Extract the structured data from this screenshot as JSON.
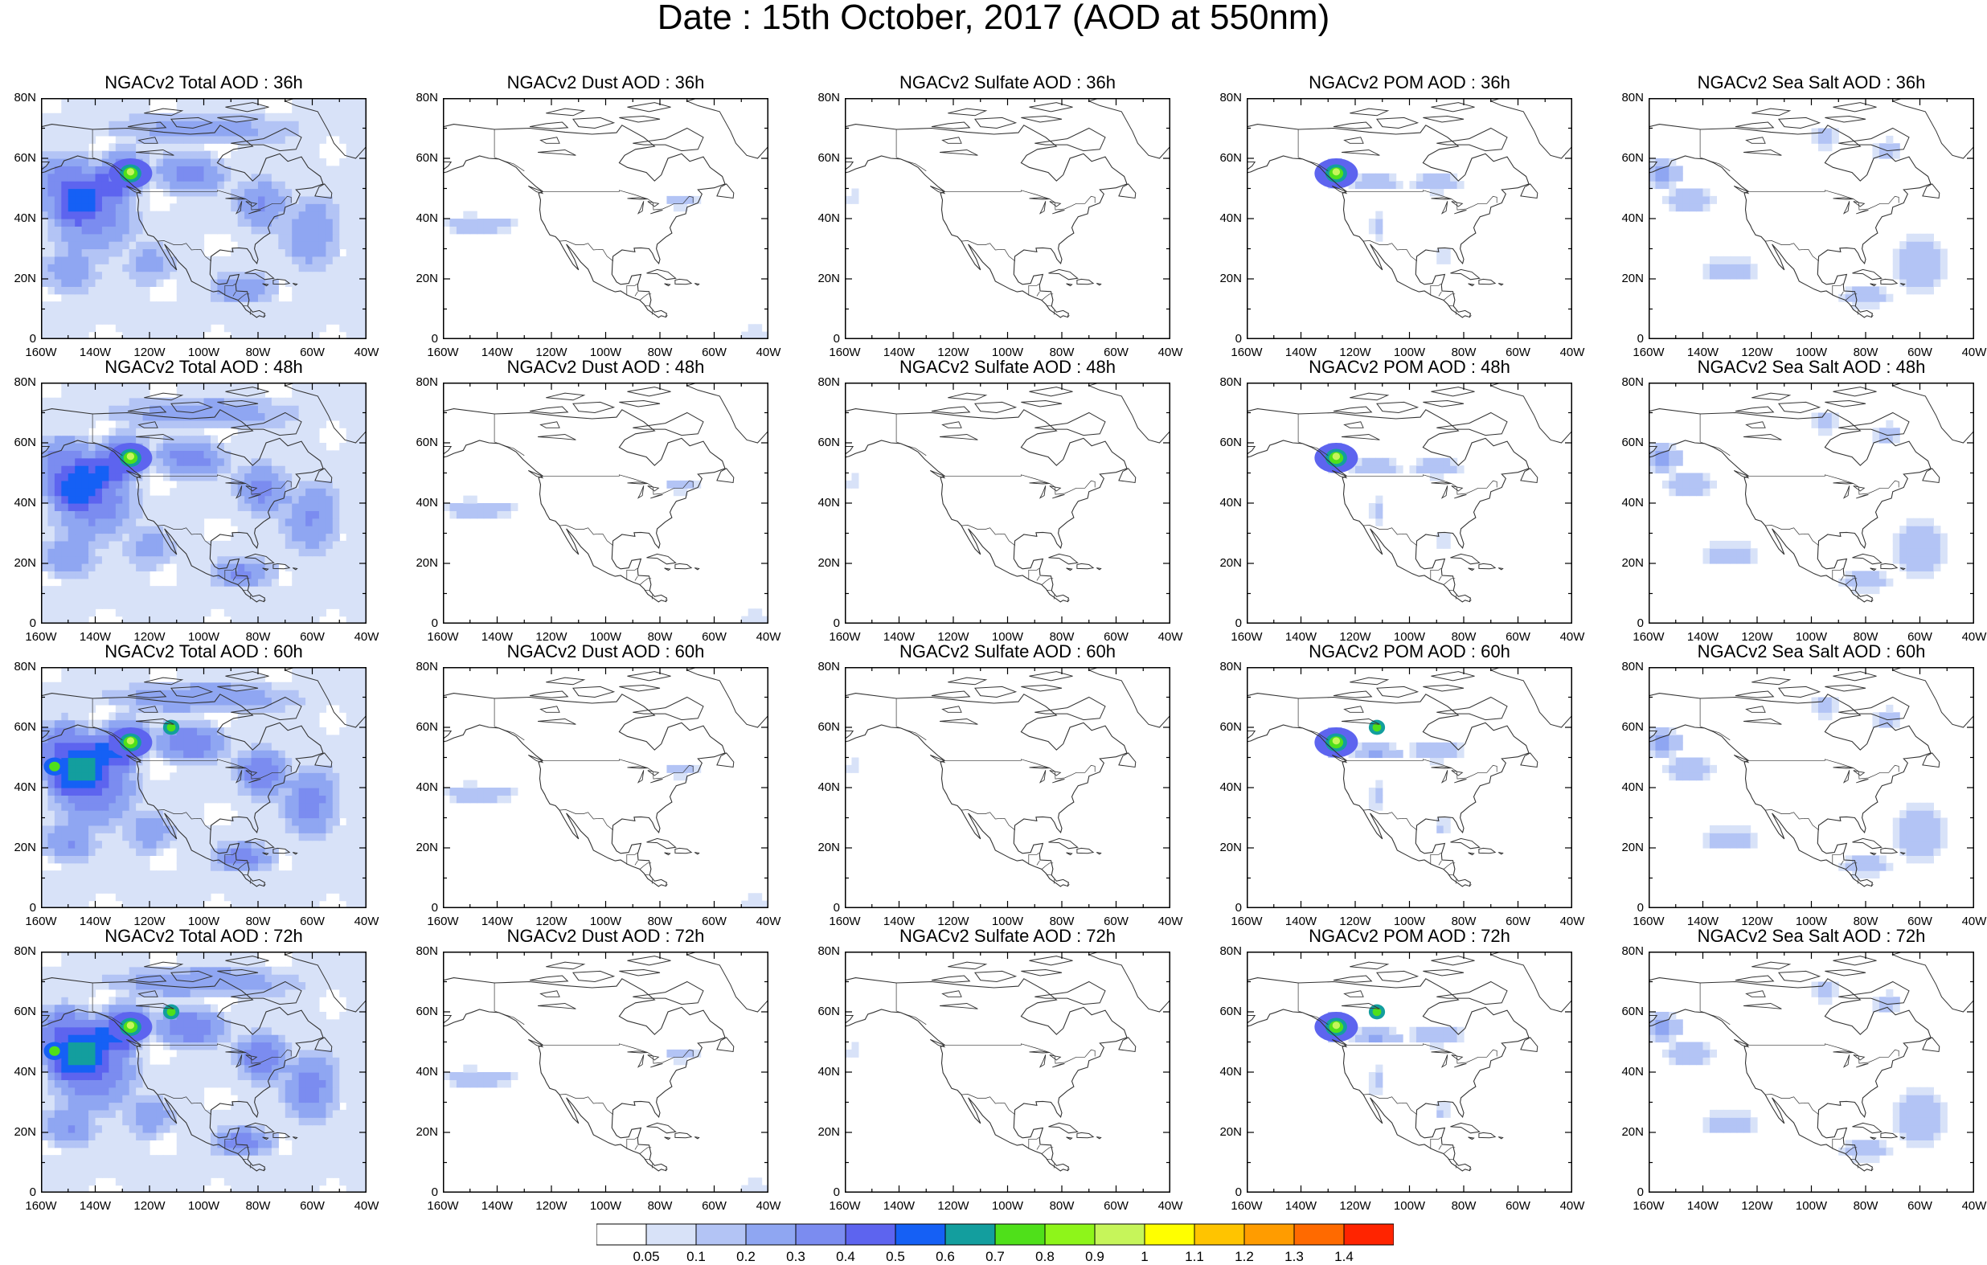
{
  "title": "Date : 15th October, 2017 (AOD at 550nm)",
  "colors": {
    "land": "#ffffff",
    "coast": "#333333",
    "frame": "#000000"
  },
  "axes": {
    "lat_ticks": [
      "0",
      "20N",
      "40N",
      "60N",
      "80N"
    ],
    "lon_ticks": [
      "160W",
      "140W",
      "120W",
      "100W",
      "80W",
      "60W",
      "40W"
    ],
    "lat_range": [
      0,
      80
    ],
    "lon_range": [
      -160,
      -40
    ]
  },
  "panels": [
    {
      "row": 0,
      "col": 0,
      "title": "NGACv2 Total AOD : 36h",
      "species": "total",
      "level": 0.2,
      "hotspot": true
    },
    {
      "row": 0,
      "col": 1,
      "title": "NGACv2 Dust AOD : 36h",
      "species": "dust",
      "level": 0.1,
      "hotspot": false
    },
    {
      "row": 0,
      "col": 2,
      "title": "NGACv2 Sulfate AOD : 36h",
      "species": "sulfate",
      "level": 0.08,
      "hotspot": false
    },
    {
      "row": 0,
      "col": 3,
      "title": "NGACv2 POM AOD : 36h",
      "species": "pom",
      "level": 0.15,
      "hotspot": true
    },
    {
      "row": 0,
      "col": 4,
      "title": "NGACv2 Sea Salt AOD : 36h",
      "species": "seasalt",
      "level": 0.15,
      "hotspot": false
    },
    {
      "row": 1,
      "col": 0,
      "title": "NGACv2 Total AOD : 48h",
      "species": "total",
      "level": 0.22,
      "hotspot": true
    },
    {
      "row": 1,
      "col": 1,
      "title": "NGACv2 Dust AOD : 48h",
      "species": "dust",
      "level": 0.1,
      "hotspot": false
    },
    {
      "row": 1,
      "col": 2,
      "title": "NGACv2 Sulfate AOD : 48h",
      "species": "sulfate",
      "level": 0.08,
      "hotspot": false
    },
    {
      "row": 1,
      "col": 3,
      "title": "NGACv2 POM AOD : 48h",
      "species": "pom",
      "level": 0.15,
      "hotspot": true
    },
    {
      "row": 1,
      "col": 4,
      "title": "NGACv2 Sea Salt AOD : 48h",
      "species": "seasalt",
      "level": 0.15,
      "hotspot": false
    },
    {
      "row": 2,
      "col": 0,
      "title": "NGACv2 Total AOD : 60h",
      "species": "total",
      "level": 0.25,
      "hotspot": true
    },
    {
      "row": 2,
      "col": 1,
      "title": "NGACv2 Dust AOD : 60h",
      "species": "dust",
      "level": 0.1,
      "hotspot": false
    },
    {
      "row": 2,
      "col": 2,
      "title": "NGACv2 Sulfate AOD : 60h",
      "species": "sulfate",
      "level": 0.08,
      "hotspot": false
    },
    {
      "row": 2,
      "col": 3,
      "title": "NGACv2 POM AOD : 60h",
      "species": "pom",
      "level": 0.18,
      "hotspot": true
    },
    {
      "row": 2,
      "col": 4,
      "title": "NGACv2 Sea Salt AOD : 60h",
      "species": "seasalt",
      "level": 0.15,
      "hotspot": false
    },
    {
      "row": 3,
      "col": 0,
      "title": "NGACv2 Total AOD : 72h",
      "species": "total",
      "level": 0.25,
      "hotspot": true
    },
    {
      "row": 3,
      "col": 1,
      "title": "NGACv2 Dust AOD : 72h",
      "species": "dust",
      "level": 0.1,
      "hotspot": false
    },
    {
      "row": 3,
      "col": 2,
      "title": "NGACv2 Sulfate AOD : 72h",
      "species": "sulfate",
      "level": 0.08,
      "hotspot": false
    },
    {
      "row": 3,
      "col": 3,
      "title": "NGACv2 POM AOD : 72h",
      "species": "pom",
      "level": 0.18,
      "hotspot": true
    },
    {
      "row": 3,
      "col": 4,
      "title": "NGACv2 Sea Salt  AOD : 72h",
      "species": "seasalt",
      "level": 0.15,
      "hotspot": false
    }
  ],
  "colorbar": {
    "labels": [
      "0.05",
      "0.1",
      "0.2",
      "0.3",
      "0.4",
      "0.5",
      "0.6",
      "0.7",
      "0.8",
      "0.9",
      "1",
      "1.1",
      "1.2",
      "1.3",
      "1.4"
    ],
    "colors": [
      "#ffffff",
      "#d8e2f8",
      "#b3c4f5",
      "#8fa6f2",
      "#7b8cf0",
      "#5d64ef",
      "#1560f5",
      "#139e9e",
      "#4fe01a",
      "#8ef51a",
      "#c6f55a",
      "#ffff00",
      "#ffc400",
      "#ff9c00",
      "#ff6a00",
      "#ff2400"
    ]
  }
}
